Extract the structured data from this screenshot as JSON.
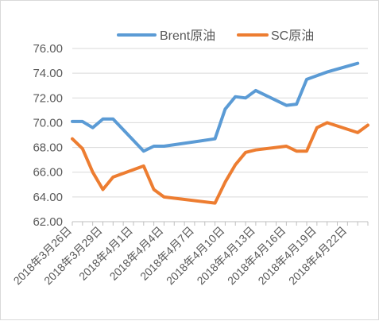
{
  "chart_data": {
    "type": "line",
    "title": "",
    "xlabel": "",
    "ylabel": "",
    "ylim": [
      62,
      76
    ],
    "y_ticks": [
      "62.00",
      "64.00",
      "66.00",
      "68.00",
      "70.00",
      "72.00",
      "74.00",
      "76.00"
    ],
    "x_tick_labels": [
      "2018年3月26日",
      "2018年3月29日",
      "2018年4月1日",
      "2018年4月4日",
      "2018年4月7日",
      "2018年4月10日",
      "2018年4月13日",
      "2018年4月16日",
      "2018年4月19日",
      "2018年4月22日"
    ],
    "x_tick_days": [
      0,
      3,
      6,
      9,
      12,
      15,
      18,
      21,
      24,
      27
    ],
    "x_range_days": [
      0,
      29
    ],
    "legend_position": "top-right",
    "series": [
      {
        "name": "Brent原油",
        "color": "#5b9bd5",
        "x_days": [
          0,
          1,
          2,
          3,
          4,
          7,
          8,
          9,
          14,
          15,
          16,
          17,
          18,
          21,
          22,
          23,
          25,
          28
        ],
        "values": [
          70.1,
          70.1,
          69.6,
          70.3,
          70.3,
          67.7,
          68.1,
          68.1,
          68.7,
          71.1,
          72.1,
          72.0,
          72.6,
          71.4,
          71.5,
          73.5,
          74.1,
          74.8
        ]
      },
      {
        "name": "SC原油",
        "color": "#ed7d31",
        "x_days": [
          0,
          1,
          2,
          3,
          4,
          7,
          8,
          9,
          14,
          15,
          16,
          17,
          18,
          21,
          22,
          23,
          24,
          25,
          28,
          29
        ],
        "values": [
          68.7,
          67.9,
          66.0,
          64.6,
          65.6,
          66.5,
          64.6,
          64.0,
          63.5,
          65.2,
          66.6,
          67.6,
          67.8,
          68.1,
          67.7,
          67.7,
          69.6,
          70.0,
          69.2,
          69.8
        ]
      }
    ]
  }
}
